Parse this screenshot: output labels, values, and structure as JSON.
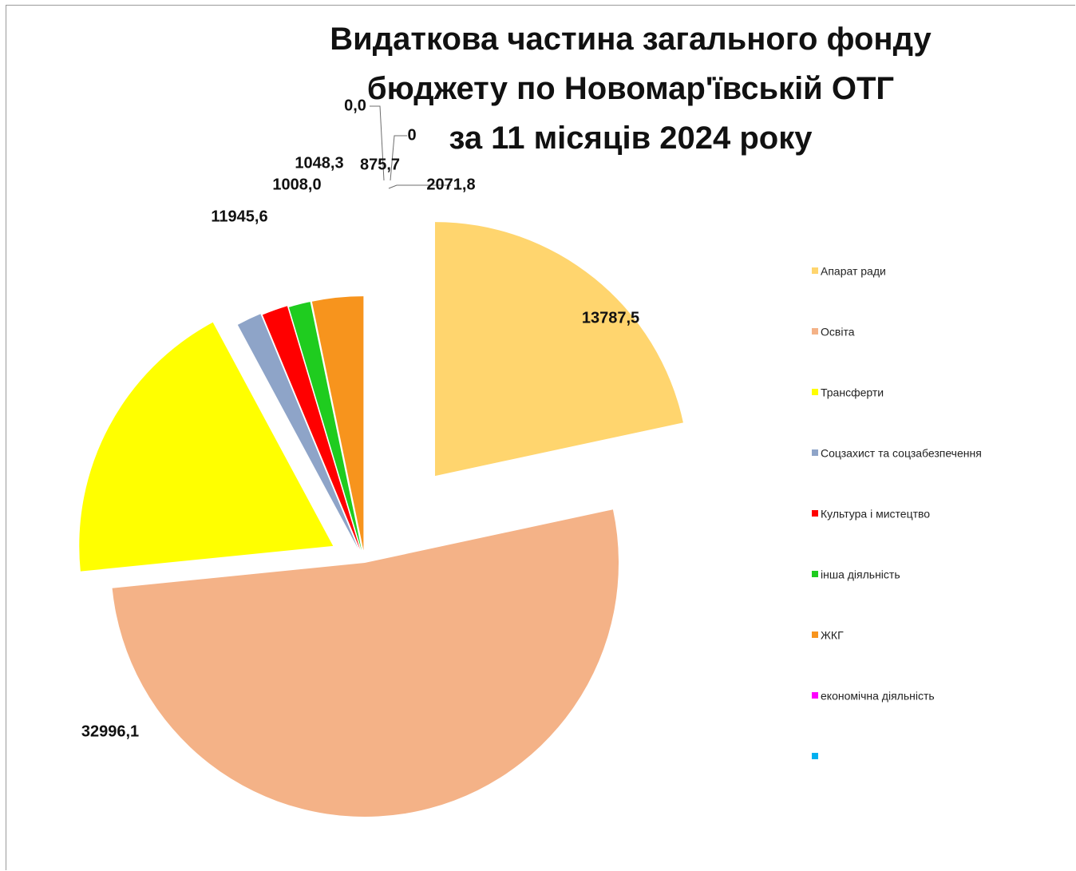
{
  "chart_data": {
    "type": "pie",
    "title_lines": [
      "Видаткова частина загального фонду",
      "бюджету по Новомар'ївській  ОТГ",
      "за 11 місяців 2024 року"
    ],
    "slices": [
      {
        "name": "Апарат ради",
        "value": 13787.5,
        "label": "13787,5",
        "color": "#FFD56E"
      },
      {
        "name": "Освіта",
        "value": 32996.1,
        "label": "32996,1",
        "color": "#F4B287"
      },
      {
        "name": "Трансферти",
        "value": 11945.6,
        "label": "11945,6",
        "color": "#FFFF00"
      },
      {
        "name": "Соцзахист та соцзабезпечення",
        "value": 1008.0,
        "label": "1008,0",
        "color": "#8EA4C8"
      },
      {
        "name": "Культура і мистецтво",
        "value": 1048.3,
        "label": "1048,3",
        "color": "#FF0000"
      },
      {
        "name": "інша діяльність",
        "value": 875.7,
        "label": "875,7",
        "color": "#1FCC1F"
      },
      {
        "name": "ЖКГ",
        "value": 2071.8,
        "label": "2071,8",
        "color": "#F7941D"
      },
      {
        "name": "економічна діяльність",
        "value": 0.0,
        "label": "0,0",
        "color": "#FF00FF"
      },
      {
        "name": "",
        "value": 0,
        "label": "0",
        "color": "#00B0F0"
      }
    ],
    "legend_position": "right"
  }
}
